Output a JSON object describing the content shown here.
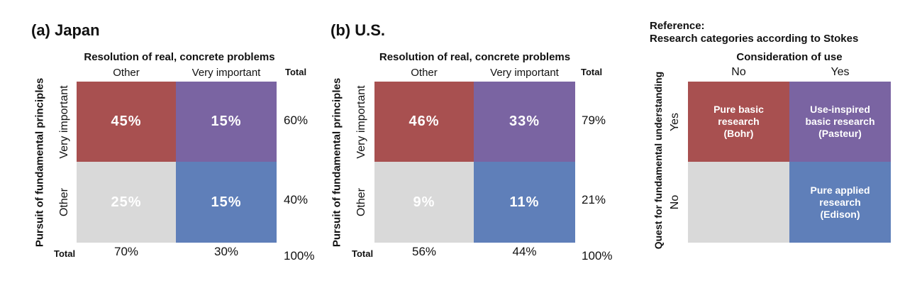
{
  "panels": {
    "japan": {
      "title": "(a) Japan",
      "column_title": "Resolution of real, concrete problems",
      "col_other": "Other",
      "col_very_important": "Very important",
      "total_header": "Total",
      "row_title": "Pursuit of fundamental principles",
      "row_very_important": "Very important",
      "row_other": "Other",
      "cells": {
        "vi_other": "45%",
        "vi_vi": "15%",
        "o_other": "25%",
        "o_vi": "15%"
      },
      "row_totals": {
        "very_important": "60%",
        "other": "40%"
      },
      "col_totals": {
        "label": "Total",
        "other": "70%",
        "very_important": "30%",
        "grand": "100%"
      }
    },
    "us": {
      "title": "(b) U.S.",
      "column_title": "Resolution of real, concrete problems",
      "col_other": "Other",
      "col_very_important": "Very important",
      "total_header": "Total",
      "row_title": "Pursuit of fundamental principles",
      "row_very_important": "Very important",
      "row_other": "Other",
      "cells": {
        "vi_other": "46%",
        "vi_vi": "33%",
        "o_other": "9%",
        "o_vi": "11%"
      },
      "row_totals": {
        "very_important": "79%",
        "other": "21%"
      },
      "col_totals": {
        "label": "Total",
        "other": "56%",
        "very_important": "44%",
        "grand": "100%"
      }
    },
    "reference": {
      "title_line1": "Reference:",
      "title_line2": "Research categories according to Stokes",
      "column_title": "Consideration of use",
      "col_no": "No",
      "col_yes": "Yes",
      "row_title": "Quest for fundamental understanding",
      "row_yes": "Yes",
      "row_no": "No",
      "cells": {
        "yes_no": "Pure basic\nresearch\n(Bohr)",
        "yes_yes": "Use-inspired\nbasic research\n(Pasteur)",
        "no_no": "",
        "no_yes": "Pure applied\nresearch\n(Edison)"
      }
    }
  },
  "colors": {
    "red": "#a85050",
    "purple": "#7a64a2",
    "grey": "#d9d9d9",
    "blue": "#5f7fb9"
  },
  "chart_data": [
    {
      "type": "heatmap",
      "title": "(a) Japan",
      "xlabel": "Resolution of real, concrete problems",
      "ylabel": "Pursuit of fundamental principles",
      "x_categories": [
        "Other",
        "Very important",
        "Total"
      ],
      "y_categories": [
        "Very important",
        "Other",
        "Total"
      ],
      "values": [
        [
          45,
          15,
          60
        ],
        [
          25,
          15,
          40
        ],
        [
          70,
          30,
          100
        ]
      ],
      "unit": "%"
    },
    {
      "type": "heatmap",
      "title": "(b) U.S.",
      "xlabel": "Resolution of real, concrete problems",
      "ylabel": "Pursuit of fundamental principles",
      "x_categories": [
        "Other",
        "Very important",
        "Total"
      ],
      "y_categories": [
        "Very important",
        "Other",
        "Total"
      ],
      "values": [
        [
          46,
          33,
          79
        ],
        [
          9,
          11,
          21
        ],
        [
          56,
          44,
          100
        ]
      ],
      "unit": "%"
    },
    {
      "type": "table",
      "title": "Reference: Research categories according to Stokes",
      "xlabel": "Consideration of use",
      "ylabel": "Quest for fundamental understanding",
      "x_categories": [
        "No",
        "Yes"
      ],
      "y_categories": [
        "Yes",
        "No"
      ],
      "cells": [
        [
          "Pure basic research (Bohr)",
          "Use-inspired basic research (Pasteur)"
        ],
        [
          "",
          "Pure applied research (Edison)"
        ]
      ]
    }
  ]
}
